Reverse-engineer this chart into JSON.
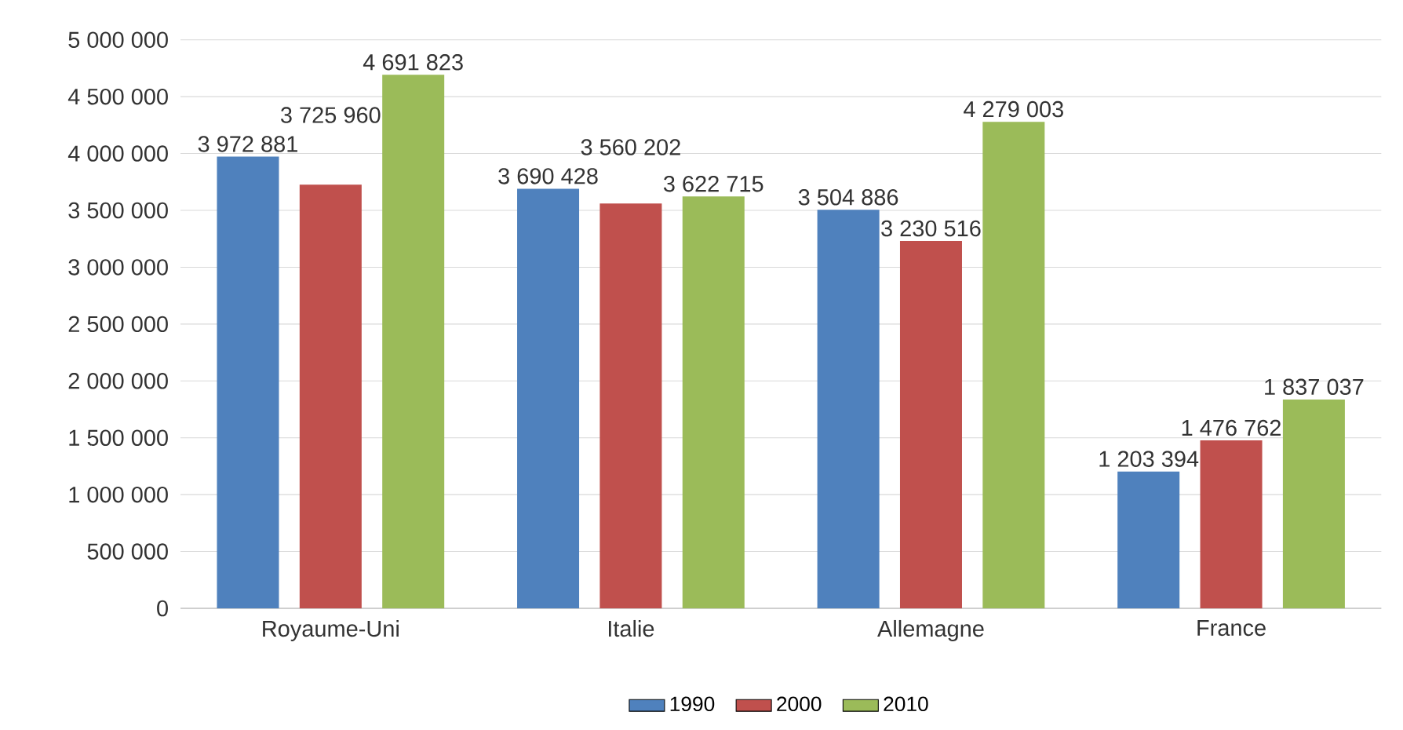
{
  "chart_data": {
    "type": "bar",
    "categories": [
      "Royaume-Uni",
      "Italie",
      "Allemagne",
      "France"
    ],
    "series": [
      {
        "name": "1990",
        "color": "#4f81bd",
        "values": [
          3972881,
          3690428,
          3504886,
          1203394
        ],
        "value_labels": [
          "3 972 881",
          "3 690 428",
          "3 504 886",
          "1 203 394"
        ]
      },
      {
        "name": "2000",
        "color": "#c0504d",
        "values": [
          3725960,
          3560202,
          3230516,
          1476762
        ],
        "value_labels": [
          "3 725 960",
          "3 560 202",
          "3 230 516",
          "1 476 762"
        ]
      },
      {
        "name": "2010",
        "color": "#9bbb59",
        "values": [
          4691823,
          3622715,
          4279003,
          1837037
        ],
        "value_labels": [
          "4 691 823",
          "3 622 715",
          "4 279 003",
          "1 837 037"
        ]
      }
    ],
    "ylim": [
      0,
      5000000
    ],
    "yticks": [
      {
        "value": 0,
        "label": "0"
      },
      {
        "value": 500000,
        "label": "500 000"
      },
      {
        "value": 1000000,
        "label": "1 000 000"
      },
      {
        "value": 1500000,
        "label": "1 500 000"
      },
      {
        "value": 2000000,
        "label": "2 000 000"
      },
      {
        "value": 2500000,
        "label": "2 500 000"
      },
      {
        "value": 3000000,
        "label": "3 000 000"
      },
      {
        "value": 3500000,
        "label": "3 500 000"
      },
      {
        "value": 4000000,
        "label": "4 000 000"
      },
      {
        "value": 4500000,
        "label": "4 500 000"
      },
      {
        "value": 5000000,
        "label": "5 000 000"
      }
    ],
    "grid": "y",
    "legend": "bottom"
  }
}
